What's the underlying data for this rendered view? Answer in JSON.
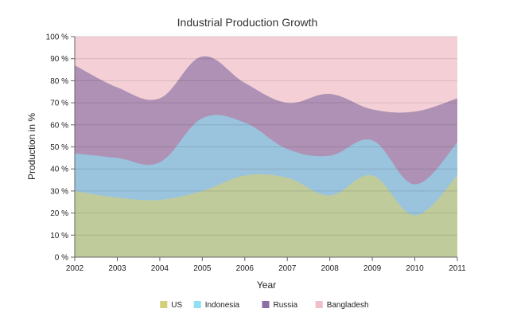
{
  "chart_data": {
    "type": "area",
    "stacking": "100%",
    "title": "Industrial Production Growth",
    "xlabel": "Year",
    "ylabel": "Production in %",
    "x": [
      2002,
      2003,
      2004,
      2005,
      2006,
      2007,
      2008,
      2009,
      2010,
      2011
    ],
    "ylim": [
      0,
      100
    ],
    "yticks": [
      0,
      10,
      20,
      30,
      40,
      50,
      60,
      70,
      80,
      90,
      100
    ],
    "ytick_suffix": " %",
    "grid": true,
    "legend_position": "bottom",
    "series": [
      {
        "name": "US",
        "color": "#d4d07a",
        "values": [
          30,
          27,
          26,
          30,
          37,
          36,
          28,
          37,
          19,
          37
        ]
      },
      {
        "name": "Indonesia",
        "color": "#8fe0f2",
        "values": [
          17,
          18,
          17,
          33,
          24,
          13,
          18,
          16,
          14,
          15
        ]
      },
      {
        "name": "Russia",
        "color": "#8a6fa3",
        "values": [
          40,
          32,
          29,
          28,
          18,
          21,
          28,
          14,
          33,
          20
        ]
      },
      {
        "name": "Bangladesh",
        "color": "#f0c0c8",
        "values": [
          13,
          23,
          28,
          9,
          21,
          30,
          26,
          33,
          34,
          28
        ]
      }
    ]
  }
}
